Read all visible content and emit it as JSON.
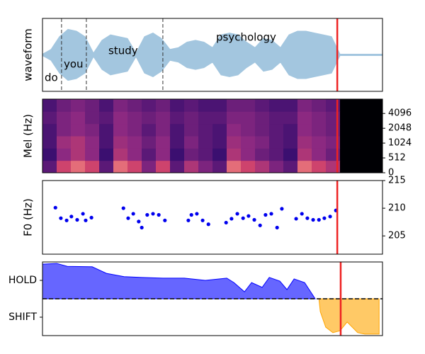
{
  "chart_data": [
    {
      "type": "waveform",
      "ylabel": "waveform",
      "xlim": [
        0,
        100
      ],
      "ylim": [
        -1,
        1
      ],
      "color": "#a3c6df",
      "words": [
        "do",
        "you",
        "study",
        "psychology"
      ],
      "boundaries": [
        5.6,
        12.9,
        35.4
      ],
      "x": [
        0,
        2.5,
        5,
        7.5,
        10,
        12.5,
        15,
        17.5,
        20,
        22.5,
        25,
        27.5,
        30,
        32.5,
        35,
        37.5,
        40,
        42.5,
        45,
        47.5,
        50,
        52.5,
        55,
        57.5,
        60,
        62.5,
        65,
        67.5,
        70,
        72.5,
        75,
        77.5,
        80,
        82.5,
        85,
        87.5,
        90,
        95,
        100
      ],
      "values": [
        0.02,
        0.15,
        0.5,
        0.7,
        0.65,
        0.5,
        0.05,
        0.4,
        0.55,
        0.5,
        0.45,
        0.05,
        0.5,
        0.6,
        0.45,
        0.15,
        0.2,
        0.35,
        0.4,
        0.35,
        0.2,
        0.55,
        0.6,
        0.55,
        0.35,
        0.2,
        0.45,
        0.4,
        0.2,
        0.55,
        0.65,
        0.65,
        0.6,
        0.55,
        0.5,
        0.02,
        0.02,
        0.02,
        0.02
      ],
      "marker": 86.7,
      "marker_color": "#ee2222"
    },
    {
      "type": "heatmap",
      "ylabel": "Mel (Hz)",
      "xlim": [
        0,
        100
      ],
      "ylim": [
        0,
        8000
      ],
      "yscale": "symlog",
      "linthresh": 512,
      "base": 2,
      "yticks": [
        0,
        512,
        1024,
        2048,
        4096
      ],
      "colormap": "magma",
      "z": [
        [
          0.35,
          0.7,
          0.8,
          0.7,
          0.35,
          0.8,
          0.7,
          0.45,
          0.7,
          0.35,
          0.6,
          0.45,
          0.35,
          0.8,
          0.7,
          0.6,
          0.45,
          0.35,
          0.8,
          0.7,
          0.6,
          0,
          0,
          0
        ],
        [
          0.25,
          0.5,
          0.6,
          0.5,
          0.25,
          0.6,
          0.5,
          0.35,
          0.5,
          0.25,
          0.4,
          0.35,
          0.25,
          0.6,
          0.5,
          0.4,
          0.35,
          0.25,
          0.6,
          0.5,
          0.4,
          0,
          0,
          0
        ],
        [
          0.3,
          0.55,
          0.6,
          0.5,
          0.3,
          0.55,
          0.5,
          0.4,
          0.5,
          0.3,
          0.45,
          0.35,
          0.3,
          0.55,
          0.5,
          0.45,
          0.35,
          0.3,
          0.55,
          0.5,
          0.45,
          0,
          0,
          0
        ],
        [
          0.3,
          0.45,
          0.5,
          0.45,
          0.3,
          0.5,
          0.45,
          0.35,
          0.45,
          0.3,
          0.4,
          0.35,
          0.3,
          0.5,
          0.45,
          0.4,
          0.35,
          0.3,
          0.5,
          0.45,
          0.4,
          0,
          0,
          0
        ],
        [
          0.35,
          0.45,
          0.5,
          0.4,
          0.35,
          0.5,
          0.45,
          0.4,
          0.45,
          0.35,
          0.4,
          0.35,
          0.35,
          0.45,
          0.45,
          0.4,
          0.35,
          0.35,
          0.5,
          0.45,
          0.4,
          0,
          0,
          0
        ],
        [
          0.3,
          0.4,
          0.45,
          0.4,
          0.3,
          0.45,
          0.4,
          0.35,
          0.4,
          0.3,
          0.35,
          0.3,
          0.3,
          0.4,
          0.4,
          0.35,
          0.3,
          0.3,
          0.45,
          0.4,
          0.35,
          0,
          0,
          0
        ]
      ],
      "marker": 86.7,
      "marker_color": "#ee2222"
    },
    {
      "type": "scatter",
      "ylabel": "F0 (Hz)",
      "xlim": [
        0,
        100
      ],
      "ylim": [
        201.7,
        215
      ],
      "yticks": [
        205,
        210,
        215
      ],
      "color": "#0000ee",
      "x": [
        3.8,
        5.4,
        7.1,
        8.5,
        10.2,
        11.9,
        12.7,
        14.4,
        23.8,
        25.2,
        26.7,
        28.3,
        29.2,
        30.8,
        32.5,
        34.2,
        36,
        42.9,
        43.8,
        45.4,
        47.1,
        48.8,
        54,
        55.6,
        57.3,
        59,
        60.6,
        62.3,
        64,
        65.6,
        67.3,
        69,
        70.4,
        74.6,
        76.3,
        77.9,
        79.6,
        81.3,
        82.9,
        84.6,
        86.3
      ],
      "values": [
        210.1,
        208.2,
        207.8,
        208.5,
        207.9,
        209,
        207.8,
        208.3,
        210,
        208.2,
        209,
        207.6,
        206.5,
        208.8,
        209,
        208.8,
        207.8,
        207.8,
        208.8,
        209,
        207.8,
        207.1,
        207.4,
        208.1,
        209,
        208.2,
        208.6,
        207.9,
        206.9,
        208.8,
        209,
        206.5,
        209.9,
        208.1,
        209,
        208.2,
        207.9,
        207.9,
        208.2,
        208.5,
        209.6
      ],
      "marker": 86.7,
      "marker_color": "#ee2222"
    },
    {
      "type": "area",
      "xlim": [
        0,
        100
      ],
      "ylim": [
        -1,
        1
      ],
      "threshold": 0,
      "yticks": [
        {
          "value": 0.5,
          "label": "HOLD"
        },
        {
          "value": -0.5,
          "label": "SHIFT"
        }
      ],
      "series": [
        {
          "color": "#0000ff",
          "x": [
            0,
            4.2,
            7.3,
            14.6,
            18.8,
            24,
            29.2,
            35.4,
            41.7,
            47.9,
            54.2,
            56.3,
            59.4,
            61.5,
            64.6,
            66.7,
            69.8,
            71.9,
            74,
            77.1,
            80.2
          ],
          "values": [
            0.94,
            0.96,
            0.88,
            0.87,
            0.69,
            0.6,
            0.58,
            0.56,
            0.56,
            0.5,
            0.56,
            0.44,
            0.19,
            0.44,
            0.31,
            0.58,
            0.48,
            0.25,
            0.54,
            0.44,
            0
          ]
        },
        {
          "color": "#ffa500",
          "x": [
            81.3,
            81.7,
            83.3,
            85.4,
            87.5,
            89.6,
            92.7,
            94.8,
            99
          ],
          "values": [
            0,
            -0.35,
            -0.77,
            -0.92,
            -0.87,
            -0.63,
            -0.92,
            -0.96,
            -0.96
          ]
        }
      ],
      "marker": 87.7,
      "marker_color": "#ee2222"
    }
  ]
}
